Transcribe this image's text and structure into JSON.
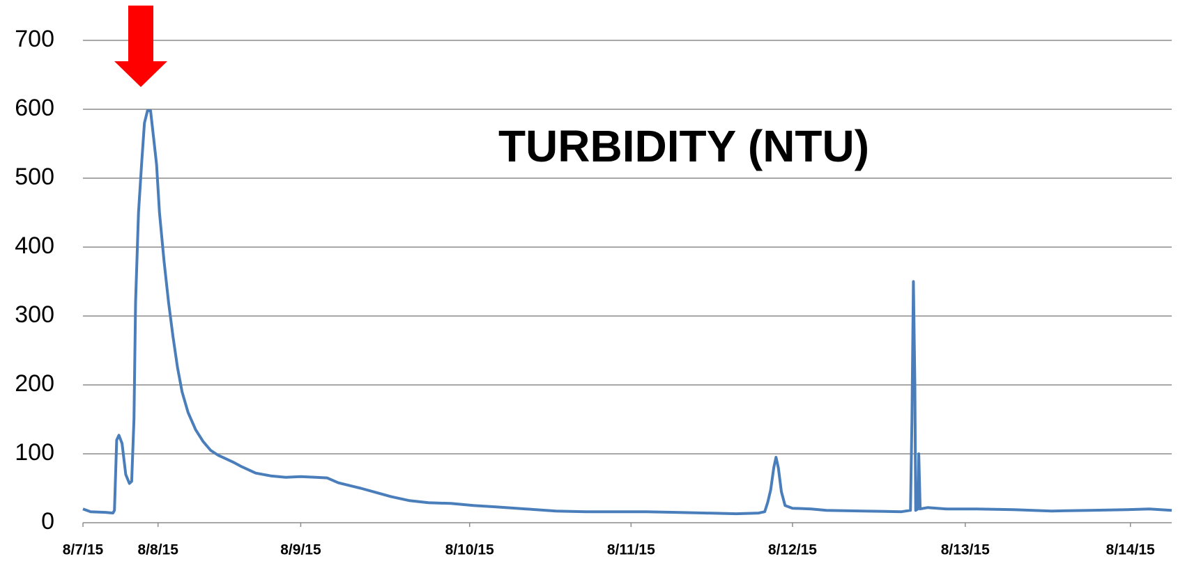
{
  "chart_data": {
    "type": "line",
    "title": "TURBIDITY (NTU)",
    "color": "#4a7ebb",
    "grid": true,
    "ylim": [
      0,
      700
    ],
    "yticks": [
      0,
      100,
      200,
      300,
      400,
      500,
      600,
      700
    ],
    "xlim": [
      0,
      6.744
    ],
    "xticks": [
      {
        "value": 0,
        "label": "8/7/15"
      },
      {
        "value": 0.465,
        "label": "8/8/15"
      },
      {
        "value": 1.349,
        "label": "8/9/15"
      },
      {
        "value": 2.395,
        "label": "8/10/15"
      },
      {
        "value": 3.395,
        "label": "8/11/15"
      },
      {
        "value": 4.395,
        "label": "8/12/15"
      },
      {
        "value": 5.465,
        "label": "8/13/15"
      },
      {
        "value": 6.488,
        "label": "8/14/15"
      }
    ],
    "x": [
      0,
      0.047,
      0.14,
      0.186,
      0.195,
      0.209,
      0.223,
      0.242,
      0.265,
      0.288,
      0.302,
      0.316,
      0.326,
      0.344,
      0.363,
      0.381,
      0.4,
      0.419,
      0.437,
      0.456,
      0.474,
      0.502,
      0.53,
      0.558,
      0.586,
      0.614,
      0.651,
      0.698,
      0.744,
      0.791,
      0.837,
      0.884,
      0.93,
      0.977,
      1.07,
      1.163,
      1.256,
      1.349,
      1.442,
      1.512,
      1.581,
      1.721,
      1.814,
      1.907,
      2.023,
      2.14,
      2.279,
      2.419,
      2.558,
      2.744,
      2.93,
      3.116,
      3.302,
      3.488,
      3.674,
      3.86,
      4.047,
      4.186,
      4.223,
      4.242,
      4.26,
      4.279,
      4.293,
      4.307,
      4.326,
      4.349,
      4.395,
      4.512,
      4.605,
      4.837,
      5.07,
      5.126,
      5.135,
      5.144,
      5.153,
      5.158,
      5.172,
      5.177,
      5.186,
      5.233,
      5.349,
      5.535,
      5.767,
      6,
      6.233,
      6.465,
      6.605,
      6.744
    ],
    "values": [
      20,
      16,
      15,
      14,
      18,
      120,
      127,
      115,
      70,
      57,
      60,
      150,
      320,
      450,
      520,
      580,
      598,
      598,
      560,
      520,
      450,
      380,
      320,
      270,
      225,
      190,
      160,
      135,
      118,
      105,
      98,
      93,
      88,
      82,
      72,
      68,
      66,
      67,
      66,
      65,
      58,
      50,
      44,
      38,
      32,
      29,
      28,
      25,
      23,
      20,
      17,
      16,
      16,
      16,
      15,
      14,
      13,
      14,
      16,
      30,
      48,
      80,
      95,
      80,
      45,
      25,
      21,
      20,
      18,
      17,
      16,
      18,
      150,
      350,
      200,
      18,
      20,
      100,
      20,
      22,
      20,
      20,
      19,
      17,
      18,
      19,
      20,
      18
    ]
  }
}
